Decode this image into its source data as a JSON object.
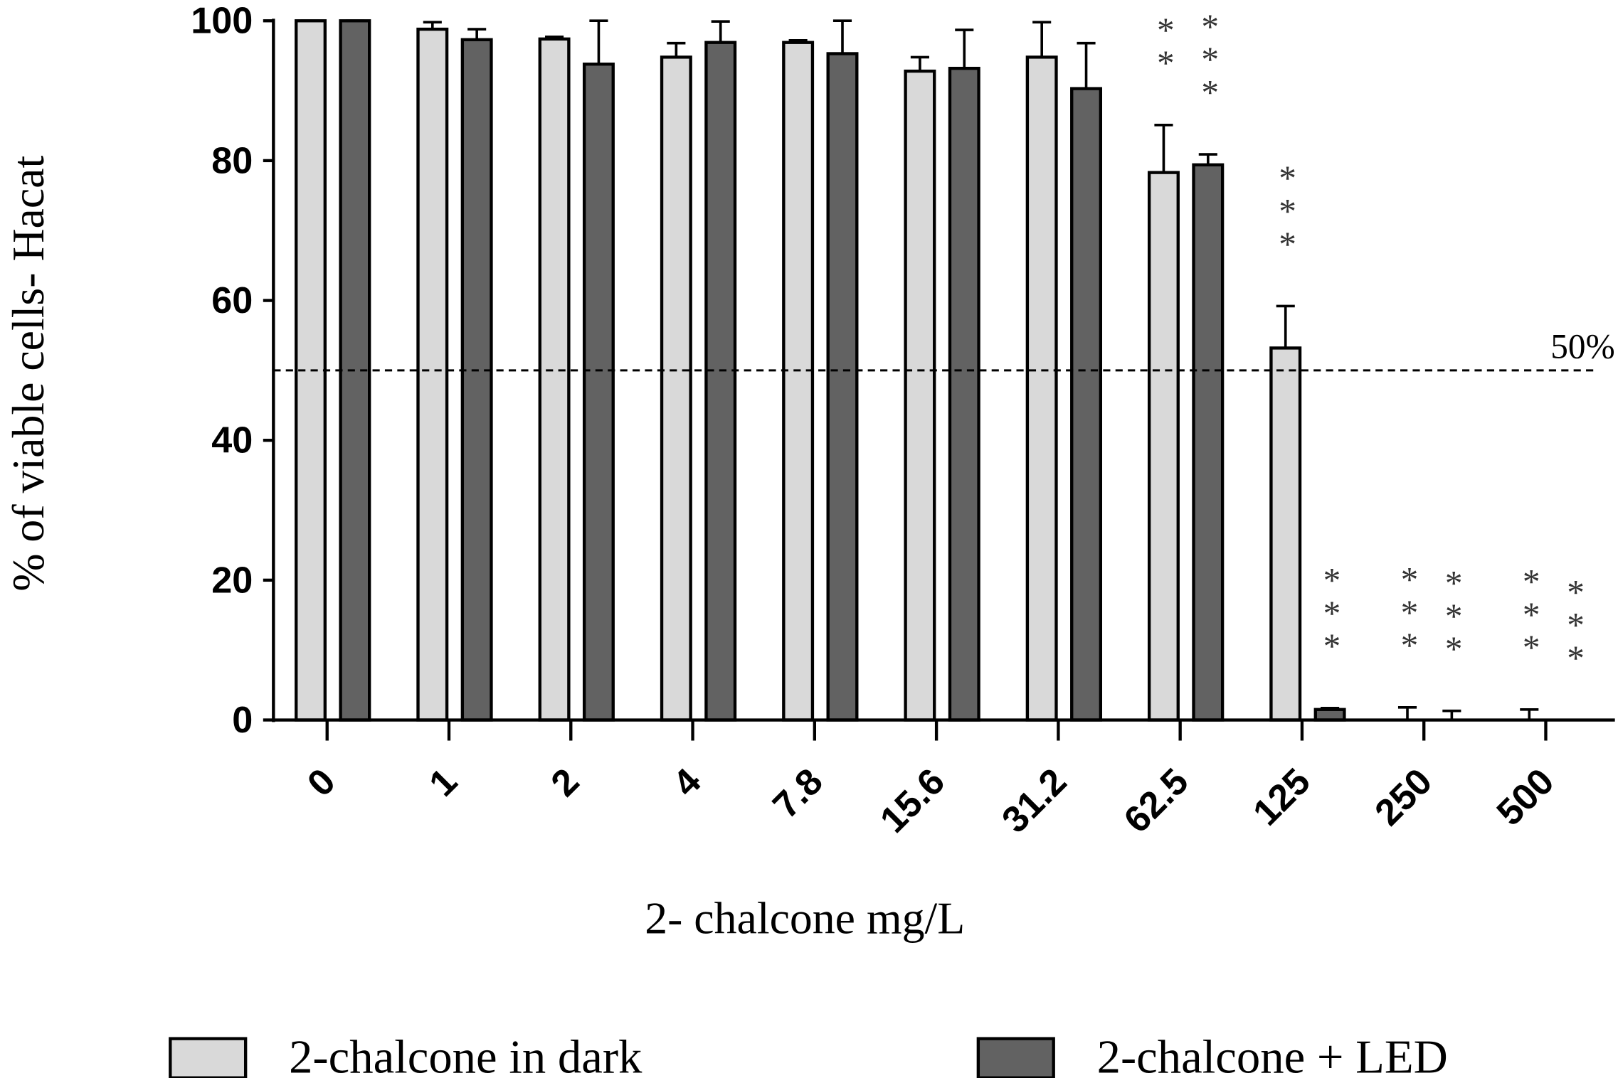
{
  "chart_data": {
    "type": "bar",
    "x_label": "2- chalcone mg/L",
    "y_label": "% of viable cells- Hacat",
    "categories": [
      "0",
      "1",
      "2",
      "4",
      "7.8",
      "15.6",
      "31.2",
      "62.5",
      "125",
      "250",
      "500"
    ],
    "series": [
      {
        "name": "2-chalcone in dark",
        "color": "#d9d9d9",
        "values": [
          100,
          98.8,
          97.4,
          94.8,
          96.9,
          92.8,
          94.8,
          78.3,
          53.2,
          0,
          0
        ],
        "errors": [
          0,
          1,
          0.3,
          2,
          0.3,
          2,
          5,
          6.8,
          6,
          1.8,
          1.5
        ],
        "annotations": [
          null,
          null,
          null,
          null,
          null,
          null,
          null,
          "***",
          "***",
          "***",
          "***"
        ]
      },
      {
        "name": "2-chalcone + LED",
        "color": "#626262",
        "values": [
          100,
          97.3,
          93.8,
          96.9,
          95.3,
          93.2,
          90.3,
          79.4,
          1.5,
          0,
          0
        ],
        "errors": [
          0,
          1.5,
          6.2,
          3,
          4.7,
          5.5,
          6.5,
          1.5,
          0.2,
          1.3,
          0
        ],
        "annotations": [
          null,
          null,
          null,
          null,
          null,
          null,
          null,
          "***",
          "***",
          "***",
          "***"
        ]
      }
    ],
    "ylim": [
      0,
      100
    ],
    "yticks": [
      0,
      20,
      40,
      60,
      80,
      100
    ],
    "reference_line": {
      "value": 50,
      "label": "50%"
    },
    "legend": "bottom"
  }
}
